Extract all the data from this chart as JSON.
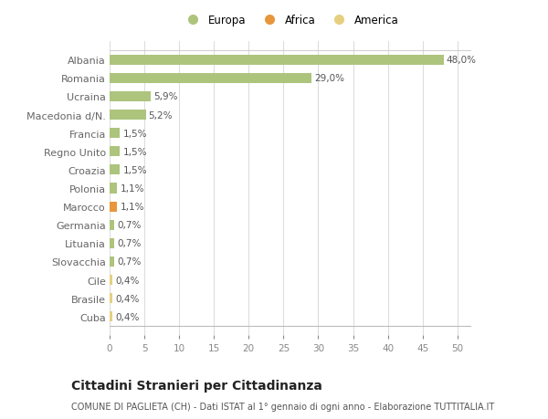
{
  "categories": [
    "Cuba",
    "Brasile",
    "Cile",
    "Slovacchia",
    "Lituania",
    "Germania",
    "Marocco",
    "Polonia",
    "Croazia",
    "Regno Unito",
    "Francia",
    "Macedonia d/N.",
    "Ucraina",
    "Romania",
    "Albania"
  ],
  "values": [
    0.4,
    0.4,
    0.4,
    0.7,
    0.7,
    0.7,
    1.1,
    1.1,
    1.5,
    1.5,
    1.5,
    5.2,
    5.9,
    29.0,
    48.0
  ],
  "labels": [
    "0,4%",
    "0,4%",
    "0,4%",
    "0,7%",
    "0,7%",
    "0,7%",
    "1,1%",
    "1,1%",
    "1,5%",
    "1,5%",
    "1,5%",
    "5,2%",
    "5,9%",
    "29,0%",
    "48,0%"
  ],
  "colors": [
    "#e6d080",
    "#e6d080",
    "#e6d080",
    "#adc47d",
    "#adc47d",
    "#adc47d",
    "#e8963c",
    "#adc47d",
    "#adc47d",
    "#adc47d",
    "#adc47d",
    "#adc47d",
    "#adc47d",
    "#adc47d",
    "#adc47d"
  ],
  "legend_labels": [
    "Europa",
    "Africa",
    "America"
  ],
  "legend_colors": [
    "#adc47d",
    "#e8963c",
    "#e6d080"
  ],
  "title": "Cittadini Stranieri per Cittadinanza",
  "subtitle": "COMUNE DI PAGLIETA (CH) - Dati ISTAT al 1° gennaio di ogni anno - Elaborazione TUTTITALIA.IT",
  "xlim": [
    0,
    52
  ],
  "xticks": [
    0,
    5,
    10,
    15,
    20,
    25,
    30,
    35,
    40,
    45,
    50
  ],
  "bg_color": "#ffffff",
  "grid_color": "#dddddd",
  "bar_height": 0.55,
  "label_fontsize": 7.5,
  "ytick_fontsize": 8,
  "xtick_fontsize": 7.5,
  "title_fontsize": 10,
  "subtitle_fontsize": 7
}
